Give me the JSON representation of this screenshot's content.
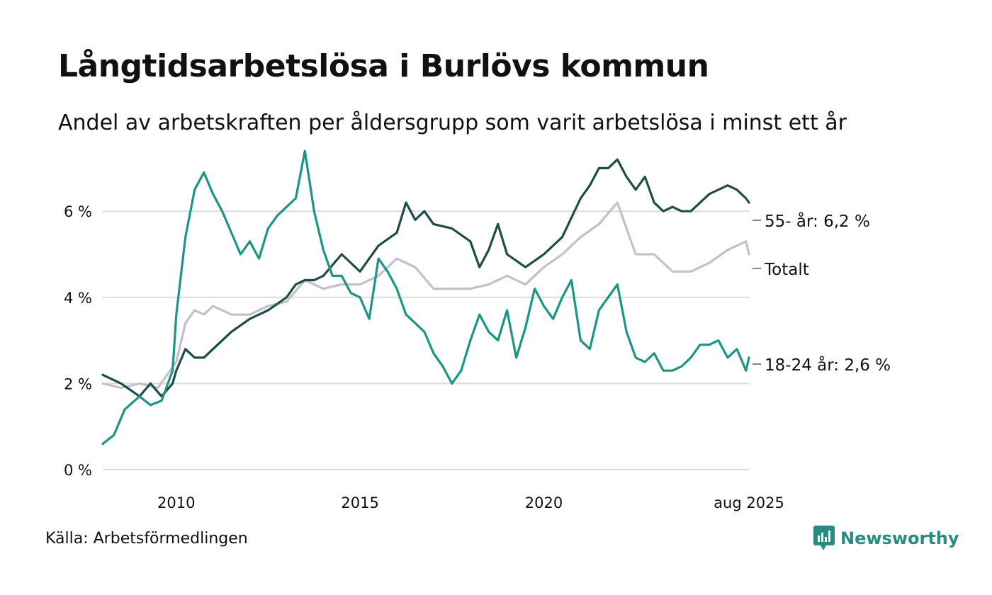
{
  "title": "Långtidsarbetslösa i Burlövs kommun",
  "subtitle": "Andel av arbetskraften per åldersgrupp som varit arbetslösa i minst ett år",
  "source": "Källa: Arbetsförmedlingen",
  "brand": {
    "name": "Newsworthy",
    "icon": "newsworthy-logo-icon",
    "color": "#2a8c80"
  },
  "chart_data": {
    "type": "line",
    "title": "Långtidsarbetslösa i Burlövs kommun",
    "ylim": [
      0,
      7.5
    ],
    "xlim": [
      2008.0,
      2025.58
    ],
    "y_ticks": [
      {
        "value": 0,
        "label": "0 %"
      },
      {
        "value": 2,
        "label": "2 %"
      },
      {
        "value": 4,
        "label": "4 %"
      },
      {
        "value": 6,
        "label": "6 %"
      }
    ],
    "x_ticks": [
      {
        "value": 2010,
        "label": "2010"
      },
      {
        "value": 2015,
        "label": "2015"
      },
      {
        "value": 2020,
        "label": "2020"
      },
      {
        "value": 2025.58,
        "label": "aug 2025"
      }
    ],
    "grid": "horizontal",
    "legend": "direct labels at right end",
    "series": [
      {
        "label": "Totalt",
        "color": "#c3bfcc",
        "end_label": "Totalt",
        "x": [
          2008.0,
          2008.5,
          2009.0,
          2009.5,
          2010.0,
          2010.25,
          2010.5,
          2010.75,
          2011.0,
          2011.5,
          2012.0,
          2012.5,
          2013.0,
          2013.5,
          2014.0,
          2014.5,
          2015.0,
          2015.5,
          2016.0,
          2016.5,
          2017.0,
          2017.5,
          2018.0,
          2018.5,
          2019.0,
          2019.5,
          2020.0,
          2020.5,
          2021.0,
          2021.5,
          2022.0,
          2022.5,
          2023.0,
          2023.5,
          2024.0,
          2024.5,
          2025.0,
          2025.5,
          2025.58
        ],
        "values": [
          2.0,
          1.9,
          2.0,
          1.9,
          2.5,
          3.4,
          3.7,
          3.6,
          3.8,
          3.6,
          3.6,
          3.8,
          3.9,
          4.4,
          4.2,
          4.3,
          4.3,
          4.5,
          4.9,
          4.7,
          4.2,
          4.2,
          4.2,
          4.3,
          4.5,
          4.3,
          4.7,
          5.0,
          5.4,
          5.7,
          6.2,
          5.0,
          5.0,
          4.6,
          4.6,
          4.8,
          5.1,
          5.3,
          5.0
        ]
      },
      {
        "label": "55- år",
        "color": "#1e4d45",
        "end_label": "55- år: 6,2 %",
        "x": [
          2008.0,
          2008.5,
          2009.0,
          2009.3,
          2009.6,
          2009.9,
          2010.0,
          2010.25,
          2010.5,
          2010.75,
          2011.0,
          2011.5,
          2012.0,
          2012.5,
          2013.0,
          2013.25,
          2013.5,
          2013.75,
          2014.0,
          2014.5,
          2015.0,
          2015.5,
          2016.0,
          2016.25,
          2016.5,
          2016.75,
          2017.0,
          2017.5,
          2018.0,
          2018.25,
          2018.5,
          2018.75,
          2019.0,
          2019.5,
          2020.0,
          2020.5,
          2021.0,
          2021.25,
          2021.5,
          2021.75,
          2022.0,
          2022.25,
          2022.5,
          2022.75,
          2023.0,
          2023.25,
          2023.5,
          2023.75,
          2024.0,
          2024.5,
          2025.0,
          2025.25,
          2025.5,
          2025.58
        ],
        "values": [
          2.2,
          2.0,
          1.7,
          2.0,
          1.7,
          2.0,
          2.3,
          2.8,
          2.6,
          2.6,
          2.8,
          3.2,
          3.5,
          3.7,
          4.0,
          4.3,
          4.4,
          4.4,
          4.5,
          5.0,
          4.6,
          5.2,
          5.5,
          6.2,
          5.8,
          6.0,
          5.7,
          5.6,
          5.3,
          4.7,
          5.1,
          5.7,
          5.0,
          4.7,
          5.0,
          5.4,
          6.3,
          6.6,
          7.0,
          7.0,
          7.2,
          6.8,
          6.5,
          6.8,
          6.2,
          6.0,
          6.1,
          6.0,
          6.0,
          6.4,
          6.6,
          6.5,
          6.3,
          6.2
        ]
      },
      {
        "label": "18-24 år",
        "color": "#1a9684",
        "end_label": "18-24 år: 2,6 %",
        "x": [
          2008.0,
          2008.3,
          2008.6,
          2009.0,
          2009.3,
          2009.6,
          2009.9,
          2010.0,
          2010.25,
          2010.5,
          2010.75,
          2011.0,
          2011.25,
          2011.5,
          2011.75,
          2012.0,
          2012.25,
          2012.5,
          2012.75,
          2013.0,
          2013.25,
          2013.5,
          2013.75,
          2014.0,
          2014.25,
          2014.5,
          2014.75,
          2015.0,
          2015.25,
          2015.5,
          2015.75,
          2016.0,
          2016.25,
          2016.5,
          2016.75,
          2017.0,
          2017.25,
          2017.5,
          2017.75,
          2018.0,
          2018.25,
          2018.5,
          2018.75,
          2019.0,
          2019.25,
          2019.5,
          2019.75,
          2020.0,
          2020.25,
          2020.5,
          2020.75,
          2021.0,
          2021.25,
          2021.5,
          2021.75,
          2022.0,
          2022.25,
          2022.5,
          2022.75,
          2023.0,
          2023.25,
          2023.5,
          2023.75,
          2024.0,
          2024.25,
          2024.5,
          2024.75,
          2025.0,
          2025.25,
          2025.5,
          2025.58
        ],
        "values": [
          0.6,
          0.8,
          1.4,
          1.7,
          1.5,
          1.6,
          2.3,
          3.6,
          5.4,
          6.5,
          6.9,
          6.4,
          6.0,
          5.5,
          5.0,
          5.3,
          4.9,
          5.6,
          5.9,
          6.1,
          6.3,
          7.4,
          6.0,
          5.1,
          4.5,
          4.5,
          4.1,
          4.0,
          3.5,
          4.9,
          4.6,
          4.2,
          3.6,
          3.4,
          3.2,
          2.7,
          2.4,
          2.0,
          2.3,
          3.0,
          3.6,
          3.2,
          3.0,
          3.7,
          2.6,
          3.3,
          4.2,
          3.8,
          3.5,
          4.0,
          4.4,
          3.0,
          2.8,
          3.7,
          4.0,
          4.3,
          3.2,
          2.6,
          2.5,
          2.7,
          2.3,
          2.3,
          2.4,
          2.6,
          2.9,
          2.9,
          3.0,
          2.6,
          2.8,
          2.3,
          2.6
        ]
      }
    ]
  }
}
